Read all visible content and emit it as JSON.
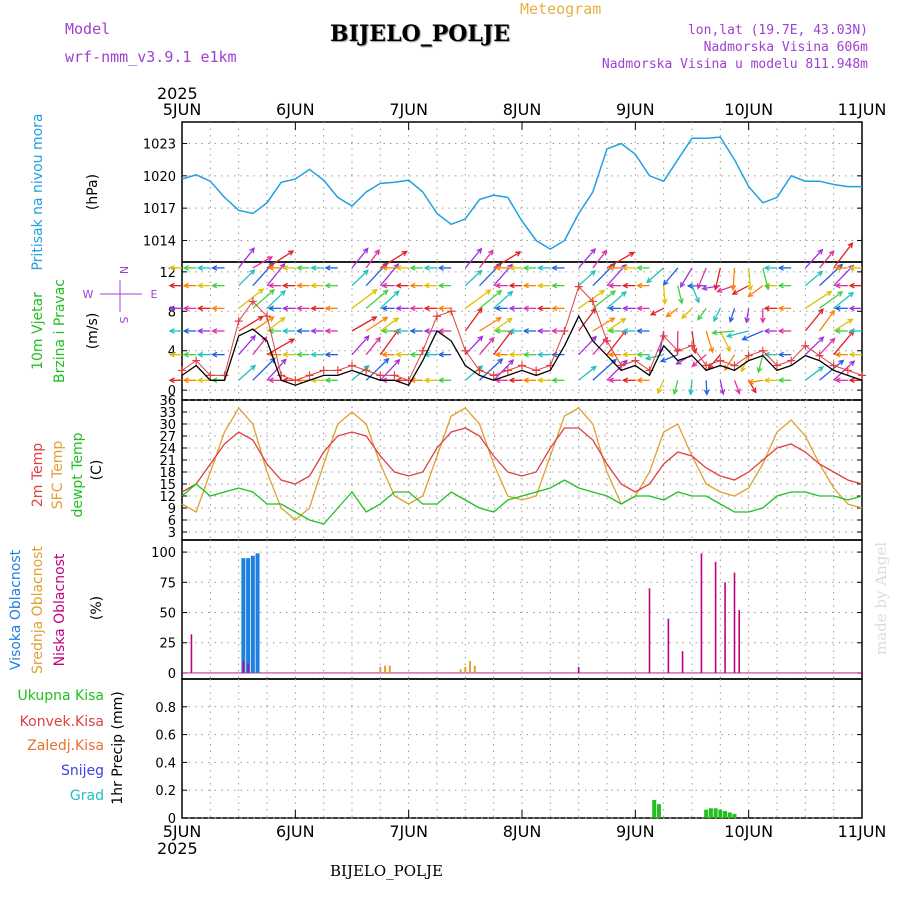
{
  "header": {
    "model_label": "Model",
    "model_name": "wrf-nmm_v3.9.1  e1km",
    "title": "BIJELO_POLJE",
    "meteogram_label": "Meteogram",
    "lonlat": "lon,lat (19.7E, 43.03N)",
    "elevation": "Nadmorska Visina 606m",
    "model_elevation": "Nadmorska Visina u modelu 811.948m",
    "watermark": "made by Angel"
  },
  "colors": {
    "purple": "#a040d0",
    "orange": "#e8b040",
    "pressure": "#20a0e0",
    "temp2m": "#e04040",
    "sfc": "#e0a030",
    "dewpt": "#20c020",
    "high_cloud": "#2080e0",
    "mid_cloud": "#e0a030",
    "low_cloud": "#c00080",
    "precip": "#20c020",
    "wind_speed": "#000000",
    "gust_marker": "#e04040"
  },
  "chart_data": [
    {
      "type": "line",
      "id": "pressure",
      "ylabel": "Pritisak na nivou mora",
      "unit": "(hPa)",
      "xlim": [
        0,
        144
      ],
      "ylim": [
        1012,
        1025
      ],
      "yticks": [
        1014,
        1017,
        1020,
        1023
      ],
      "series": [
        {
          "x": [
            0,
            3,
            6,
            9,
            12,
            15,
            18,
            21,
            24,
            27,
            30,
            33,
            36,
            39,
            42,
            45,
            48,
            51,
            54,
            57,
            60,
            63,
            66,
            69,
            72,
            75,
            78,
            81,
            84,
            87,
            90,
            93,
            96,
            99,
            102,
            105,
            108,
            111,
            114,
            117,
            120,
            123,
            126,
            129,
            132,
            135,
            138,
            141,
            144
          ],
          "values": [
            1019.7,
            1020.1,
            1019.5,
            1018.0,
            1016.8,
            1016.5,
            1017.5,
            1019.4,
            1019.7,
            1020.6,
            1019.6,
            1018.0,
            1017.2,
            1018.5,
            1019.3,
            1019.4,
            1019.6,
            1018.5,
            1016.5,
            1015.5,
            1016.0,
            1017.8,
            1018.2,
            1018.0,
            1015.8,
            1014.0,
            1013.2,
            1014.0,
            1016.5,
            1018.5,
            1022.5,
            1023.0,
            1022.0,
            1020.0,
            1019.5,
            1021.5,
            1023.5,
            1023.5,
            1023.6,
            1021.5,
            1019.0,
            1017.5,
            1018.0,
            1020.0,
            1019.5,
            1019.5,
            1019.2,
            1019.0,
            1019.0
          ]
        }
      ]
    },
    {
      "type": "line",
      "id": "wind",
      "ylabel": [
        "10m Vjetar",
        "Brzina i Pravac"
      ],
      "unit": "(m/s)",
      "compass": {
        "n": "N",
        "s": "S",
        "e": "E",
        "w": "W"
      },
      "xlim": [
        0,
        144
      ],
      "ylim": [
        -1,
        13
      ],
      "yticks": [
        0,
        4,
        8,
        12
      ],
      "arrow_rows": [
        1,
        3.6,
        6,
        8.3,
        10.6,
        12.4
      ],
      "series": [
        {
          "name": "speed",
          "x": [
            0,
            3,
            6,
            9,
            12,
            15,
            18,
            21,
            24,
            27,
            30,
            33,
            36,
            39,
            42,
            45,
            48,
            51,
            54,
            57,
            60,
            63,
            66,
            69,
            72,
            75,
            78,
            81,
            84,
            87,
            90,
            93,
            96,
            99,
            102,
            105,
            108,
            111,
            114,
            117,
            120,
            123,
            126,
            129,
            132,
            135,
            138,
            141,
            144
          ],
          "values": [
            1.5,
            2.5,
            1.0,
            1.0,
            5.5,
            6.2,
            5.0,
            1.0,
            0.5,
            1.0,
            1.5,
            1.5,
            2.0,
            1.5,
            1.0,
            1.0,
            0.5,
            3.0,
            6.0,
            5.0,
            2.5,
            1.5,
            1.0,
            1.5,
            2.0,
            1.5,
            2.0,
            4.5,
            7.5,
            5.0,
            3.5,
            2.0,
            2.5,
            1.5,
            4.5,
            3.0,
            3.5,
            2.0,
            2.5,
            2.0,
            3.0,
            3.5,
            2.0,
            2.5,
            3.5,
            3.0,
            2.0,
            1.5,
            1.0
          ]
        },
        {
          "name": "gust",
          "x": [
            0,
            3,
            6,
            9,
            12,
            15,
            18,
            21,
            24,
            27,
            30,
            33,
            36,
            39,
            42,
            45,
            48,
            51,
            54,
            57,
            60,
            63,
            66,
            69,
            72,
            75,
            78,
            81,
            84,
            87,
            90,
            93,
            96,
            99,
            102,
            105,
            108,
            111,
            114,
            117,
            120,
            123,
            126,
            129,
            132,
            135,
            138,
            141,
            144
          ],
          "values": [
            2.0,
            3.0,
            1.5,
            1.5,
            7.0,
            9.0,
            7.5,
            1.5,
            1.0,
            1.5,
            2.0,
            2.0,
            2.5,
            2.0,
            1.5,
            1.5,
            1.0,
            4.0,
            7.5,
            8.0,
            4.0,
            2.0,
            1.5,
            2.0,
            2.5,
            2.0,
            2.5,
            6.0,
            10.5,
            9.0,
            5.0,
            2.5,
            3.0,
            2.0,
            5.5,
            4.0,
            4.5,
            2.5,
            3.0,
            2.5,
            3.5,
            4.0,
            2.5,
            3.0,
            4.5,
            3.5,
            2.5,
            2.0,
            1.5
          ]
        }
      ]
    },
    {
      "type": "line",
      "id": "temperature",
      "ylabel": [
        "2m Temp",
        "SFC Temp",
        "dewpt Temp"
      ],
      "unit": "(C)",
      "xlim": [
        0,
        144
      ],
      "ylim": [
        1,
        36
      ],
      "yticks": [
        3,
        6,
        9,
        12,
        15,
        18,
        21,
        24,
        27,
        30,
        33,
        36
      ],
      "series": [
        {
          "name": "2m Temp",
          "x": [
            0,
            3,
            6,
            9,
            12,
            15,
            18,
            21,
            24,
            27,
            30,
            33,
            36,
            39,
            42,
            45,
            48,
            51,
            54,
            57,
            60,
            63,
            66,
            69,
            72,
            75,
            78,
            81,
            84,
            87,
            90,
            93,
            96,
            99,
            102,
            105,
            108,
            111,
            114,
            117,
            120,
            123,
            126,
            129,
            132,
            135,
            138,
            141,
            144
          ],
          "values": [
            13,
            15,
            20,
            25,
            28,
            26,
            20,
            16,
            15,
            17,
            23,
            27,
            28,
            27,
            22,
            18,
            17,
            18,
            24,
            28,
            29,
            27,
            22,
            18,
            17,
            18,
            24,
            29,
            29,
            26,
            20,
            15,
            13,
            15,
            20,
            23,
            22,
            19,
            17,
            16,
            18,
            21,
            24,
            25,
            23,
            20,
            18,
            16,
            15
          ]
        },
        {
          "name": "SFC Temp",
          "x": [
            0,
            3,
            6,
            9,
            12,
            15,
            18,
            21,
            24,
            27,
            30,
            33,
            36,
            39,
            42,
            45,
            48,
            51,
            54,
            57,
            60,
            63,
            66,
            69,
            72,
            75,
            78,
            81,
            84,
            87,
            90,
            93,
            96,
            99,
            102,
            105,
            108,
            111,
            114,
            117,
            120,
            123,
            126,
            129,
            132,
            135,
            138,
            141,
            144
          ],
          "values": [
            10,
            8,
            18,
            28,
            34,
            30,
            18,
            9,
            6,
            9,
            20,
            30,
            33,
            30,
            20,
            12,
            10,
            12,
            22,
            32,
            34,
            30,
            20,
            12,
            11,
            12,
            22,
            32,
            34,
            30,
            18,
            10,
            12,
            18,
            28,
            30,
            22,
            15,
            13,
            12,
            14,
            20,
            28,
            31,
            27,
            20,
            14,
            10,
            9
          ]
        },
        {
          "name": "dewpt Temp",
          "x": [
            0,
            3,
            6,
            9,
            12,
            15,
            18,
            21,
            24,
            27,
            30,
            33,
            36,
            39,
            42,
            45,
            48,
            51,
            54,
            57,
            60,
            63,
            66,
            69,
            72,
            75,
            78,
            81,
            84,
            87,
            90,
            93,
            96,
            99,
            102,
            105,
            108,
            111,
            114,
            117,
            120,
            123,
            126,
            129,
            132,
            135,
            138,
            141,
            144
          ],
          "values": [
            12,
            15,
            12,
            13,
            14,
            13,
            10,
            10,
            8,
            6,
            5,
            9,
            13,
            8,
            10,
            13,
            13,
            10,
            10,
            13,
            11,
            9,
            8,
            11,
            12,
            13,
            14,
            16,
            14,
            13,
            12,
            10,
            12,
            12,
            11,
            13,
            12,
            12,
            10,
            8,
            8,
            9,
            12,
            13,
            13,
            12,
            12,
            11,
            12
          ]
        }
      ]
    },
    {
      "type": "bar",
      "id": "cloud",
      "ylabel": [
        "Visoka Oblacnost",
        "Srednja Oblacnost",
        "Niska Oblacnost"
      ],
      "unit": "(%)",
      "xlim": [
        0,
        144
      ],
      "ylim": [
        -5,
        110
      ],
      "yticks": [
        0,
        25,
        50,
        75,
        100
      ],
      "series": [
        {
          "name": "Visoka Oblacnost",
          "x": [
            13,
            14,
            15,
            16
          ],
          "values": [
            95,
            95,
            97,
            99
          ]
        },
        {
          "name": "Srednja Oblacnost",
          "x": [
            42,
            43,
            44,
            59,
            60,
            61,
            62
          ],
          "values": [
            5,
            6,
            6,
            3,
            5,
            10,
            6
          ]
        },
        {
          "name": "Niska Oblacnost",
          "x": [
            2,
            13,
            14,
            84,
            99,
            103,
            106,
            110,
            113,
            115,
            117,
            118
          ],
          "values": [
            32,
            10,
            8,
            5,
            70,
            45,
            18,
            99,
            92,
            75,
            83,
            52
          ]
        }
      ]
    },
    {
      "type": "bar",
      "id": "precip",
      "ylabel": [
        "Ukupna Kisa",
        "Konvek.Kisa",
        "Zaledj.Kisa",
        "Snijeg",
        "Grad"
      ],
      "unit": "1hr Precip (mm)",
      "xlim": [
        0,
        144
      ],
      "ylim": [
        0,
        1.0
      ],
      "yticks": [
        0,
        0.2,
        0.4,
        0.6,
        0.8
      ],
      "series": [
        {
          "name": "Ukupna Kisa",
          "x": [
            100,
            101,
            111,
            112,
            113,
            114,
            115,
            116,
            117
          ],
          "values": [
            0.13,
            0.1,
            0.06,
            0.07,
            0.07,
            0.06,
            0.05,
            0.04,
            0.03
          ]
        }
      ]
    }
  ],
  "x_axis": {
    "year": "2025",
    "labels": [
      "5JUN",
      "6JUN",
      "7JUN",
      "8JUN",
      "9JUN",
      "10JUN",
      "11JUN"
    ],
    "bottom_station": "BIJELO_POLJE"
  }
}
